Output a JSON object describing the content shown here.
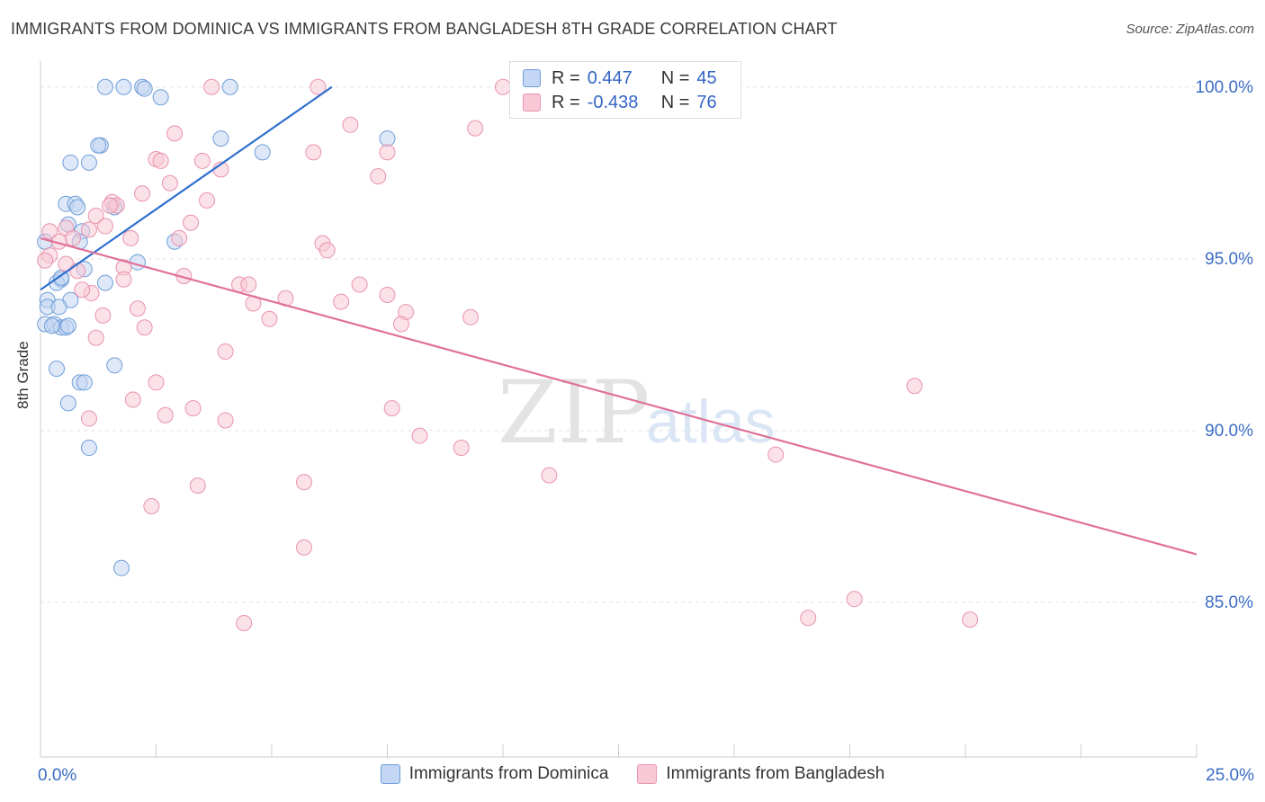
{
  "chart_data": {
    "type": "scatter",
    "title": "IMMIGRANTS FROM DOMINICA VS IMMIGRANTS FROM BANGLADESH 8TH GRADE CORRELATION CHART",
    "source": "Source: ZipAtlas.com",
    "xlabel": "",
    "ylabel": "8th Grade",
    "xlim": [
      0,
      25
    ],
    "ylim": [
      80.5,
      100.7
    ],
    "x_min_label": "0.0%",
    "x_max_label": "25.0%",
    "y_ticks": [
      {
        "value": 100,
        "label": "100.0%"
      },
      {
        "value": 95,
        "label": "95.0%"
      },
      {
        "value": 90,
        "label": "90.0%"
      },
      {
        "value": 85,
        "label": "85.0%"
      }
    ],
    "watermark": {
      "zip": "ZIP",
      "atlas": "atlas"
    },
    "legend": {
      "r_label": "R =",
      "n_label": "N =",
      "entries": [
        {
          "name": "Immigrants from Dominica",
          "r": "0.447",
          "n": "45"
        },
        {
          "name": "Immigrants from Bangladesh",
          "r": "-0.438",
          "n": "76"
        }
      ]
    },
    "series": [
      {
        "name": "Immigrants from Dominica",
        "color": "#6f9ed8",
        "fill": "#c3d6f3",
        "trend": {
          "x0": 0.0,
          "y0": 94.1,
          "x1": 6.3,
          "y1": 100.0
        },
        "points": [
          [
            1.4,
            100.0
          ],
          [
            1.8,
            100.0
          ],
          [
            2.2,
            100.0
          ],
          [
            2.25,
            99.95
          ],
          [
            4.1,
            100.0
          ],
          [
            2.6,
            99.7
          ],
          [
            3.9,
            98.5
          ],
          [
            7.5,
            98.5
          ],
          [
            1.3,
            98.3
          ],
          [
            1.25,
            98.3
          ],
          [
            4.8,
            98.1
          ],
          [
            0.65,
            97.8
          ],
          [
            1.05,
            97.8
          ],
          [
            0.55,
            96.6
          ],
          [
            0.75,
            96.6
          ],
          [
            0.8,
            96.5
          ],
          [
            1.6,
            96.5
          ],
          [
            0.6,
            96.0
          ],
          [
            0.9,
            95.8
          ],
          [
            0.1,
            95.5
          ],
          [
            0.85,
            95.5
          ],
          [
            2.9,
            95.5
          ],
          [
            2.1,
            94.9
          ],
          [
            0.95,
            94.7
          ],
          [
            0.45,
            94.4
          ],
          [
            0.35,
            94.3
          ],
          [
            1.4,
            94.3
          ],
          [
            0.15,
            93.8
          ],
          [
            0.65,
            93.8
          ],
          [
            0.15,
            93.6
          ],
          [
            0.4,
            93.6
          ],
          [
            0.1,
            93.1
          ],
          [
            0.3,
            93.1
          ],
          [
            0.45,
            93.0
          ],
          [
            0.55,
            93.0
          ],
          [
            0.35,
            91.8
          ],
          [
            1.6,
            91.9
          ],
          [
            0.85,
            91.4
          ],
          [
            0.95,
            91.4
          ],
          [
            0.6,
            90.8
          ],
          [
            1.05,
            89.5
          ],
          [
            1.75,
            86.0
          ],
          [
            0.25,
            93.05
          ],
          [
            0.6,
            93.05
          ],
          [
            0.45,
            94.45
          ]
        ]
      },
      {
        "name": "Immigrants from Bangladesh",
        "color": "#e993ad",
        "fill": "#f8c8d6",
        "trend": {
          "x0": 0.0,
          "y0": 95.6,
          "x1": 25.0,
          "y1": 86.4
        },
        "points": [
          [
            3.7,
            100.0
          ],
          [
            6.0,
            100.0
          ],
          [
            10.0,
            100.0
          ],
          [
            6.7,
            98.9
          ],
          [
            9.4,
            98.8
          ],
          [
            2.9,
            98.65
          ],
          [
            5.9,
            98.1
          ],
          [
            7.5,
            98.1
          ],
          [
            2.5,
            97.9
          ],
          [
            2.6,
            97.85
          ],
          [
            3.5,
            97.85
          ],
          [
            3.9,
            97.6
          ],
          [
            7.3,
            97.4
          ],
          [
            2.8,
            97.2
          ],
          [
            2.2,
            96.9
          ],
          [
            3.6,
            96.7
          ],
          [
            1.55,
            96.65
          ],
          [
            1.65,
            96.55
          ],
          [
            1.2,
            96.25
          ],
          [
            1.5,
            96.55
          ],
          [
            3.25,
            96.05
          ],
          [
            1.4,
            95.95
          ],
          [
            1.05,
            95.85
          ],
          [
            0.55,
            95.9
          ],
          [
            0.2,
            95.8
          ],
          [
            0.7,
            95.6
          ],
          [
            0.4,
            95.5
          ],
          [
            1.95,
            95.6
          ],
          [
            3.0,
            95.6
          ],
          [
            6.1,
            95.45
          ],
          [
            6.2,
            95.25
          ],
          [
            0.2,
            95.1
          ],
          [
            0.1,
            94.95
          ],
          [
            0.55,
            94.85
          ],
          [
            1.8,
            94.75
          ],
          [
            0.8,
            94.65
          ],
          [
            3.1,
            94.5
          ],
          [
            1.8,
            94.4
          ],
          [
            4.3,
            94.25
          ],
          [
            4.5,
            94.25
          ],
          [
            6.9,
            94.25
          ],
          [
            1.1,
            94.0
          ],
          [
            0.9,
            94.1
          ],
          [
            7.5,
            93.95
          ],
          [
            5.3,
            93.85
          ],
          [
            4.6,
            93.7
          ],
          [
            6.5,
            93.75
          ],
          [
            2.1,
            93.55
          ],
          [
            7.9,
            93.45
          ],
          [
            1.35,
            93.35
          ],
          [
            9.3,
            93.3
          ],
          [
            4.95,
            93.25
          ],
          [
            7.8,
            93.1
          ],
          [
            2.25,
            93.0
          ],
          [
            1.2,
            92.7
          ],
          [
            4.0,
            92.3
          ],
          [
            18.9,
            91.3
          ],
          [
            2.5,
            91.4
          ],
          [
            2.0,
            90.9
          ],
          [
            3.3,
            90.65
          ],
          [
            7.6,
            90.65
          ],
          [
            2.7,
            90.45
          ],
          [
            4.0,
            90.3
          ],
          [
            1.05,
            90.35
          ],
          [
            8.2,
            89.85
          ],
          [
            9.1,
            89.5
          ],
          [
            15.9,
            89.3
          ],
          [
            11.0,
            88.7
          ],
          [
            3.4,
            88.4
          ],
          [
            5.7,
            88.5
          ],
          [
            2.4,
            87.8
          ],
          [
            5.7,
            86.6
          ],
          [
            17.6,
            85.1
          ],
          [
            16.6,
            84.55
          ],
          [
            20.1,
            84.5
          ],
          [
            4.4,
            84.4
          ]
        ]
      }
    ]
  }
}
